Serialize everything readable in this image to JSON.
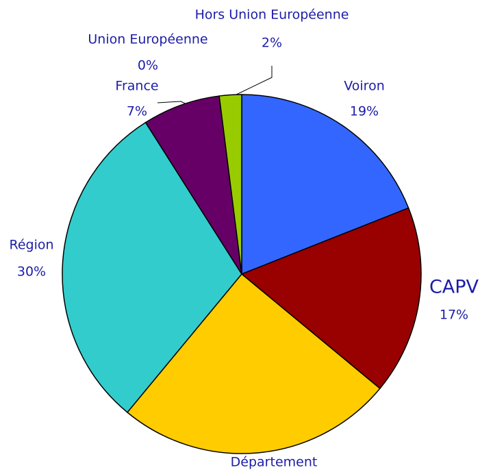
{
  "chart_data": {
    "type": "pie",
    "categories": [
      "Voiron",
      "CAPV",
      "Département",
      "Région",
      "France",
      "Union Européenne",
      "Hors Union Européenne"
    ],
    "values": [
      19,
      17,
      25,
      30,
      7,
      0,
      2
    ],
    "value_labels": [
      "19%",
      "17%",
      null,
      "30%",
      "7%",
      "0%",
      "2%"
    ],
    "colors": [
      "#3366ff",
      "#990000",
      "#ffcc00",
      "#33cccc",
      "#660066",
      "#ff99cc",
      "#99cc00"
    ]
  }
}
